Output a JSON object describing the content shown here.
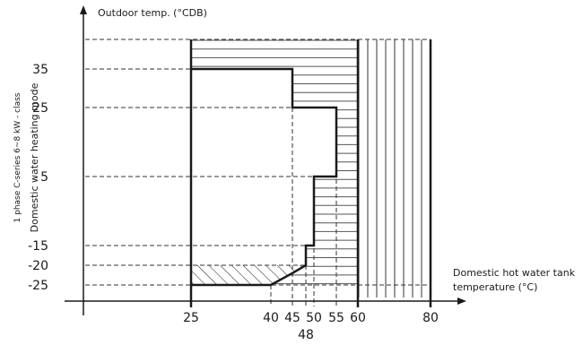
{
  "chart_data": {
    "type": "area",
    "ylabel": "Outdoor temp. (°CDB)",
    "xlabel_line1": "Domestic hot water tank",
    "xlabel_line2": "temperature (°C)",
    "side_title": "Domestic water heating mode",
    "side_subtitle": "1 phase C-series 6~8 kW - class",
    "x_ticks": [
      "25",
      "40",
      "45",
      "50",
      "55",
      "60",
      "80"
    ],
    "x_extra_tick": "48",
    "y_ticks": [
      "35",
      "25",
      "5",
      "-15",
      "-20",
      "-25"
    ],
    "x_tick_values": [
      25,
      40,
      45,
      50,
      55,
      60,
      80
    ],
    "x_extra_value": 48,
    "y_tick_values": [
      35,
      25,
      5,
      -15,
      -20,
      -25
    ],
    "y_top": 44,
    "operating_boundary": [
      [
        25,
        35
      ],
      [
        45,
        35
      ],
      [
        45,
        25
      ],
      [
        55,
        25
      ],
      [
        55,
        5
      ],
      [
        50,
        5
      ],
      [
        50,
        -15
      ],
      [
        48,
        -15
      ],
      [
        48,
        -20
      ],
      [
        45,
        -22
      ],
      [
        40,
        -25
      ],
      [
        25,
        -25
      ]
    ],
    "horizontal_hatch_region": {
      "x_range": [
        25,
        60
      ],
      "y_range": [
        -25,
        44
      ]
    },
    "vertical_hatch_region": {
      "x_range": [
        60,
        80
      ],
      "y_range": [
        -25,
        44
      ]
    },
    "diagonal_hatch_region": {
      "x_range": [
        25,
        48
      ],
      "y_range": [
        -25,
        -20
      ]
    }
  }
}
